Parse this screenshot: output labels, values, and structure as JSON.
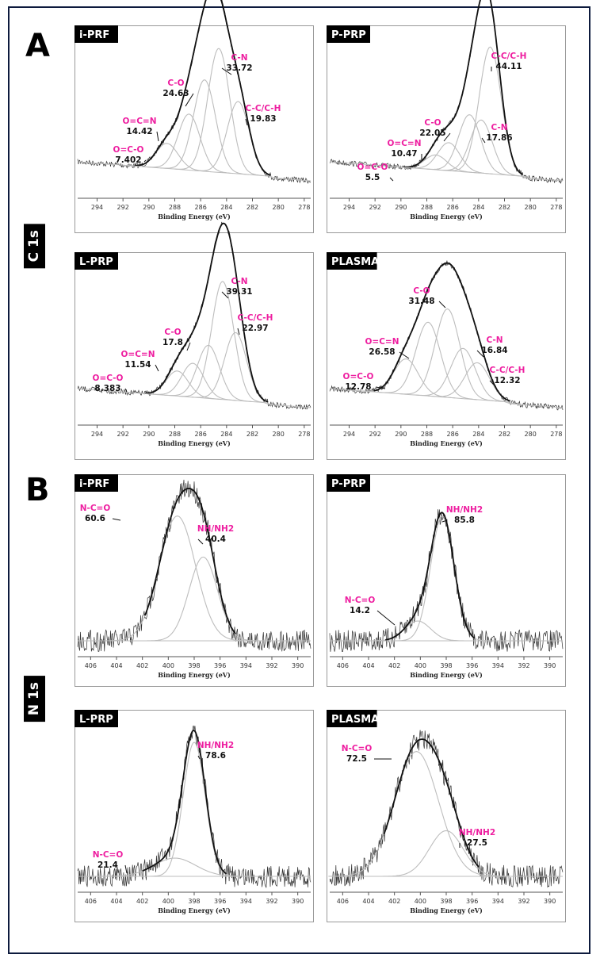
{
  "figure": {
    "sections": [
      {
        "letter": "A",
        "side_label": "C 1s"
      },
      {
        "letter": "B",
        "side_label": "N 1s"
      }
    ]
  },
  "chart_data": [
    {
      "type": "line",
      "title": "i-PRF",
      "xlabel": "Binding Energy (eV)",
      "ylabel": "",
      "xlim": [
        295.5,
        277.5
      ],
      "xticks": [
        294,
        292,
        290,
        288,
        286,
        284,
        282,
        280,
        278
      ],
      "grid": false,
      "legend": "none",
      "peaks": [
        {
          "name": "O=C-O",
          "value": "7.402",
          "center": 288.6,
          "height": 0.17,
          "width": 0.85
        },
        {
          "name": "O=C=N",
          "value": "14.42",
          "center": 286.9,
          "height": 0.38,
          "width": 0.85
        },
        {
          "name": "C-O",
          "value": "24.63",
          "center": 285.7,
          "height": 0.62,
          "width": 0.85
        },
        {
          "name": "C-N",
          "value": "33.72",
          "center": 284.6,
          "height": 0.84,
          "width": 0.85
        },
        {
          "name": "C-C/C-H",
          "value": "19.83",
          "center": 283.1,
          "height": 0.49,
          "width": 0.85
        }
      ]
    },
    {
      "type": "line",
      "title": "P-PRP",
      "xlabel": "Binding Energy (eV)",
      "ylabel": "",
      "xlim": [
        295.5,
        277.5
      ],
      "xticks": [
        294,
        292,
        290,
        288,
        286,
        284,
        282,
        280,
        278
      ],
      "grid": false,
      "legend": "none",
      "peaks": [
        {
          "name": "O=C-O",
          "value": "5.5",
          "center": 287.3,
          "height": 0.1,
          "width": 0.85
        },
        {
          "name": "O=C=N",
          "value": "10.47",
          "center": 286.3,
          "height": 0.19,
          "width": 0.85
        },
        {
          "name": "C-O",
          "value": "22.05",
          "center": 284.7,
          "height": 0.39,
          "width": 0.85
        },
        {
          "name": "C-N",
          "value": "17.86",
          "center": 283.8,
          "height": 0.36,
          "width": 0.85
        },
        {
          "name": "C-C/C-H",
          "value": "44.11",
          "center": 283.1,
          "height": 0.86,
          "width": 0.85
        }
      ]
    },
    {
      "type": "line",
      "title": "L-PRP",
      "xlabel": "Binding Energy (eV)",
      "ylabel": "",
      "xlim": [
        295.5,
        277.5
      ],
      "xticks": [
        294,
        292,
        290,
        288,
        286,
        284,
        282,
        280,
        278
      ],
      "grid": false,
      "legend": "none",
      "peaks": [
        {
          "name": "O=C-O",
          "value": "8.383",
          "center": 287.8,
          "height": 0.17,
          "width": 0.85
        },
        {
          "name": "O=C=N",
          "value": "11.54",
          "center": 286.6,
          "height": 0.23,
          "width": 0.85
        },
        {
          "name": "C-O",
          "value": "17.8",
          "center": 285.4,
          "height": 0.36,
          "width": 0.85
        },
        {
          "name": "C-N",
          "value": "39.31",
          "center": 284.3,
          "height": 0.8,
          "width": 0.85
        },
        {
          "name": "C-C/C-H",
          "value": "22.97",
          "center": 283.3,
          "height": 0.46,
          "width": 0.85
        }
      ]
    },
    {
      "type": "line",
      "title": "PLASMA",
      "xlabel": "Binding Energy (eV)",
      "ylabel": "",
      "xlim": [
        295.5,
        277.5
      ],
      "xticks": [
        294,
        292,
        290,
        288,
        286,
        284,
        282,
        280,
        278
      ],
      "grid": false,
      "legend": "none",
      "peaks": [
        {
          "name": "O=C-O",
          "value": "12.78",
          "center": 289.6,
          "height": 0.24,
          "width": 0.95
        },
        {
          "name": "O=C=N",
          "value": "26.58",
          "center": 287.9,
          "height": 0.5,
          "width": 0.95
        },
        {
          "name": "C-O",
          "value": "31.48",
          "center": 286.4,
          "height": 0.6,
          "width": 0.95
        },
        {
          "name": "C-N",
          "value": "16.84",
          "center": 285.2,
          "height": 0.34,
          "width": 0.95
        },
        {
          "name": "C-C/C-H",
          "value": "12.32",
          "center": 284.1,
          "height": 0.25,
          "width": 0.95
        }
      ]
    },
    {
      "type": "line",
      "title": "i-PRF",
      "xlabel": "Binding Energy (eV)",
      "ylabel": "",
      "xlim": [
        407,
        389
      ],
      "xticks": [
        406,
        404,
        402,
        400,
        398,
        396,
        394,
        392,
        390
      ],
      "grid": false,
      "legend": "none",
      "peaks": [
        {
          "name": "N-C=O",
          "value": "60.6",
          "center": 399.3,
          "height": 0.82,
          "width": 1.4
        },
        {
          "name": "NH/NH2",
          "value": "40.4",
          "center": 397.3,
          "height": 0.55,
          "width": 1.1
        }
      ]
    },
    {
      "type": "line",
      "title": "P-PRP",
      "xlabel": "Binding Energy (eV)",
      "ylabel": "",
      "xlim": [
        407,
        389
      ],
      "xticks": [
        406,
        404,
        402,
        400,
        398,
        396,
        394,
        392,
        390
      ],
      "grid": false,
      "legend": "none",
      "peaks": [
        {
          "name": "N-C=O",
          "value": "14.2",
          "center": 400.2,
          "height": 0.13,
          "width": 1.0
        },
        {
          "name": "NH/NH2",
          "value": "85.8",
          "center": 398.3,
          "height": 0.82,
          "width": 0.9
        }
      ]
    },
    {
      "type": "line",
      "title": "L-PRP",
      "xlabel": "Binding Energy (eV)",
      "ylabel": "",
      "xlim": [
        407,
        389
      ],
      "xticks": [
        406,
        404,
        402,
        400,
        398,
        396,
        394,
        392,
        390
      ],
      "grid": false,
      "legend": "none",
      "peaks": [
        {
          "name": "N-C=O",
          "value": "21.4",
          "center": 399.5,
          "height": 0.12,
          "width": 1.6
        },
        {
          "name": "NH/NH2",
          "value": "78.6",
          "center": 398.0,
          "height": 0.88,
          "width": 0.85
        }
      ]
    },
    {
      "type": "line",
      "title": "PLASMA",
      "xlabel": "Binding Energy (eV)",
      "ylabel": "",
      "xlim": [
        407,
        389
      ],
      "xticks": [
        406,
        404,
        402,
        400,
        398,
        396,
        394,
        392,
        390
      ],
      "grid": false,
      "legend": "none",
      "peaks": [
        {
          "name": "N-C=O",
          "value": "72.5",
          "center": 400.3,
          "height": 0.82,
          "width": 1.7
        },
        {
          "name": "NH/NH2",
          "value": "27.5",
          "center": 398.0,
          "height": 0.3,
          "width": 1.3
        }
      ]
    }
  ]
}
